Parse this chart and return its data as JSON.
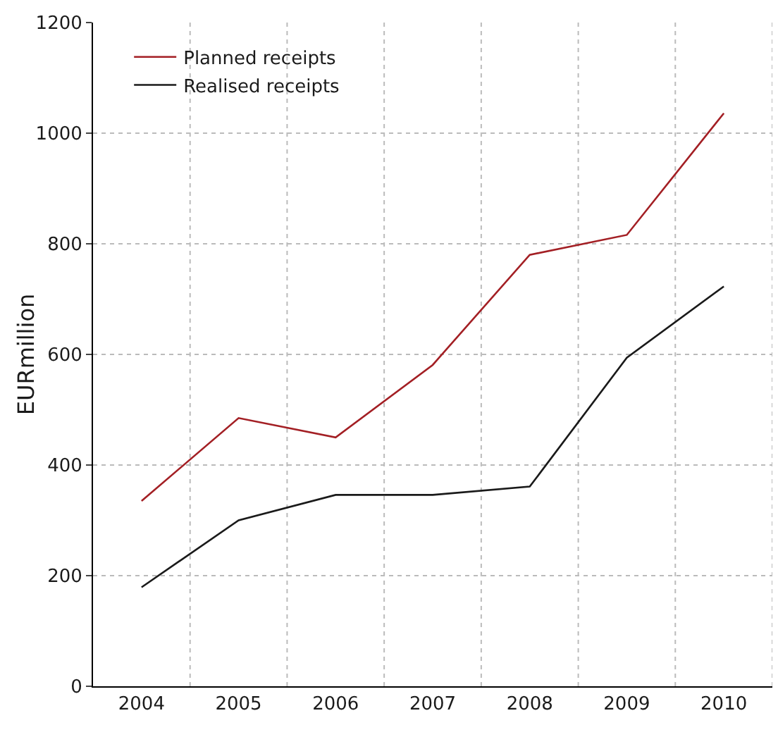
{
  "chart_data": {
    "type": "line",
    "ylabel": "EURmillion",
    "categories": [
      "2004",
      "2005",
      "2006",
      "2007",
      "2008",
      "2009",
      "2010"
    ],
    "series": [
      {
        "name": "Planned receipts",
        "color": "#a31f24",
        "values": [
          335,
          485,
          450,
          581,
          780,
          816,
          1036
        ]
      },
      {
        "name": "Realised receipts",
        "color": "#1a1a1a",
        "values": [
          179,
          300,
          346,
          346,
          361,
          594,
          723
        ]
      }
    ],
    "ylim": [
      0,
      1200
    ],
    "yticks": [
      0,
      200,
      400,
      600,
      800,
      1000,
      1200
    ],
    "grid": true,
    "legend": "top left",
    "marker": "none",
    "line_style": "solid"
  }
}
